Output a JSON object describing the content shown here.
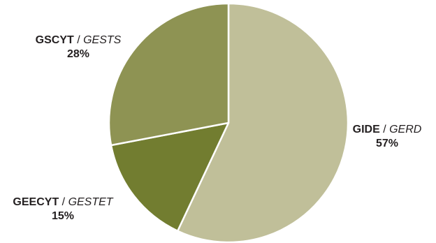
{
  "chart_data": {
    "type": "pie",
    "slices": [
      {
        "label_en": "GIDE",
        "separator": " / ",
        "label_fr": "GERD",
        "value": 57,
        "value_label": "57%",
        "color": "#c0bf99"
      },
      {
        "label_en": "GEECYT",
        "separator": " / ",
        "label_fr": "GESTET",
        "value": 15,
        "value_label": "15%",
        "color": "#727d30"
      },
      {
        "label_en": "GSCYT",
        "separator": " / ",
        "label_fr": "GESTS",
        "value": 28,
        "value_label": "28%",
        "color": "#8e9353"
      }
    ],
    "start": "12 o'clock",
    "direction": "clockwise",
    "slice_border_color": "#ffffff",
    "legend": "none"
  }
}
